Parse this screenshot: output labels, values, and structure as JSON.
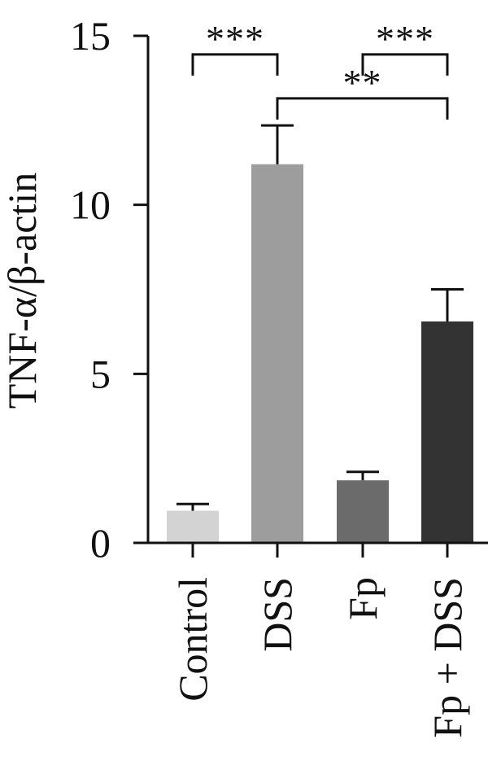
{
  "chart_data": {
    "type": "bar",
    "categories": [
      "Control",
      "DSS",
      "Fp",
      "Fp + DSS"
    ],
    "values": [
      0.95,
      11.2,
      1.85,
      6.55
    ],
    "errors": [
      0.2,
      1.15,
      0.25,
      0.95
    ],
    "colors": [
      "#d3d3d3",
      "#9d9d9d",
      "#6b6b6b",
      "#333333"
    ],
    "title": "",
    "xlabel": "",
    "ylabel": "TNF-α/β-actin",
    "ylim": [
      0,
      15
    ],
    "yticks": [
      "0",
      "5",
      "10",
      "15"
    ],
    "grid": false,
    "significance": [
      {
        "from": 0,
        "to": 1,
        "label": "***",
        "level": 14.45
      },
      {
        "from": 2,
        "to": 3,
        "label": "***",
        "level": 14.45
      },
      {
        "from": 1,
        "to": 3,
        "label": "**",
        "level": 13.15
      }
    ]
  }
}
